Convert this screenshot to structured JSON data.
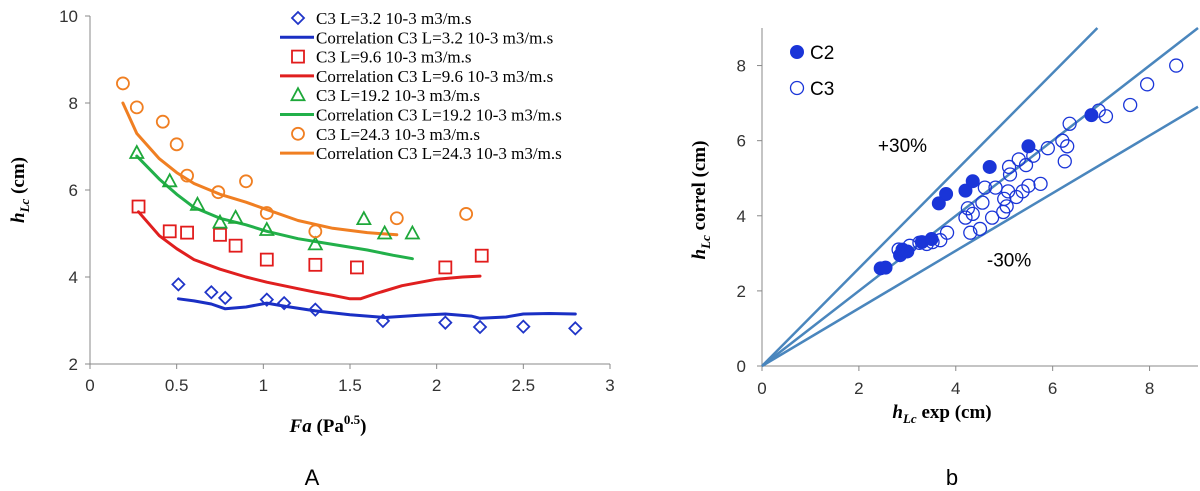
{
  "chart_data": [
    {
      "type": "scatter",
      "panel_label": "A",
      "xlabel": {
        "italic": "Fa",
        "normal": " (Pa",
        "sup": "0.5",
        "close": ")"
      },
      "ylabel": {
        "main": "h",
        "sub": "Lc",
        "rest": " (cm)"
      },
      "xlim": [
        0,
        3
      ],
      "ylim": [
        2,
        10
      ],
      "xticks": [
        "0",
        "0.5",
        "1",
        "1.5",
        "2",
        "2.5",
        "3"
      ],
      "yticks": [
        "2",
        "4",
        "6",
        "8",
        "10"
      ],
      "grid": false,
      "legend_position": "top-right",
      "series": [
        {
          "name": "C3 L=3.2 10-3 m3/m.s",
          "kind": "marker",
          "marker": "diamond",
          "color": "#2035c8",
          "x": [
            0.51,
            0.7,
            0.78,
            1.02,
            1.12,
            1.3,
            1.69,
            2.05,
            2.25,
            2.5,
            2.8
          ],
          "y": [
            3.83,
            3.65,
            3.52,
            3.48,
            3.4,
            3.25,
            2.99,
            2.95,
            2.85,
            2.86,
            2.82
          ]
        },
        {
          "name": "Correlation C3 L=3.2 10-3 m3/m.s",
          "kind": "line",
          "color": "#1a2fc4",
          "x": [
            0.51,
            0.6,
            0.7,
            0.78,
            0.9,
            1.02,
            1.12,
            1.3,
            1.5,
            1.7,
            1.9,
            2.05,
            2.2,
            2.25,
            2.4,
            2.5,
            2.65,
            2.8
          ],
          "y": [
            3.5,
            3.45,
            3.38,
            3.27,
            3.31,
            3.4,
            3.33,
            3.22,
            3.13,
            3.07,
            3.12,
            3.15,
            3.1,
            3.05,
            3.08,
            3.15,
            3.16,
            3.15
          ]
        },
        {
          "name": "C3 L=9.6 10-3 m3/m.s",
          "kind": "marker",
          "marker": "square",
          "color": "#e21c1c",
          "x": [
            0.28,
            0.46,
            0.56,
            0.75,
            0.84,
            1.02,
            1.3,
            1.54,
            2.05,
            2.26
          ],
          "y": [
            5.62,
            5.05,
            5.02,
            4.97,
            4.72,
            4.4,
            4.28,
            4.22,
            4.22,
            4.49
          ]
        },
        {
          "name": "Correlation C3 L=9.6 10-3 m3/m.s",
          "kind": "line",
          "color": "#e01f1f",
          "x": [
            0.28,
            0.4,
            0.5,
            0.6,
            0.75,
            0.9,
            1.02,
            1.2,
            1.3,
            1.4,
            1.5,
            1.56,
            1.65,
            1.8,
            2.0,
            2.15,
            2.25
          ],
          "y": [
            5.5,
            4.95,
            4.65,
            4.4,
            4.18,
            4.0,
            3.88,
            3.73,
            3.65,
            3.58,
            3.5,
            3.5,
            3.62,
            3.8,
            3.95,
            4.0,
            4.02
          ]
        },
        {
          "name": "C3 L=19.2 10-3 m3/m.s",
          "kind": "marker",
          "marker": "triangle",
          "color": "#1ea83a",
          "x": [
            0.27,
            0.46,
            0.62,
            0.75,
            0.84,
            1.02,
            1.3,
            1.58,
            1.7,
            1.86
          ],
          "y": [
            6.85,
            6.2,
            5.66,
            5.25,
            5.36,
            5.08,
            4.75,
            5.33,
            5.0,
            5.0
          ]
        },
        {
          "name": "Correlation C3 L=19.2 10-3 m3/m.s",
          "kind": "line",
          "color": "#22b04a",
          "x": [
            0.27,
            0.4,
            0.5,
            0.6,
            0.75,
            0.9,
            1.02,
            1.2,
            1.4,
            1.6,
            1.75,
            1.86
          ],
          "y": [
            6.78,
            6.25,
            5.9,
            5.6,
            5.35,
            5.2,
            5.05,
            4.88,
            4.75,
            4.62,
            4.5,
            4.42
          ]
        },
        {
          "name": "C3 L=24.3 10-3 m3/m.s",
          "kind": "marker",
          "marker": "circle",
          "color": "#f07f22",
          "x": [
            0.19,
            0.27,
            0.42,
            0.5,
            0.56,
            0.74,
            0.9,
            1.02,
            1.3,
            1.77,
            2.17
          ],
          "y": [
            8.45,
            7.9,
            7.57,
            7.05,
            6.33,
            5.95,
            6.2,
            5.47,
            5.05,
            5.35,
            5.45
          ]
        },
        {
          "name": "Correlation C3 L=24.3 10-3 m3/m.s",
          "kind": "line",
          "color": "#f07f22",
          "x": [
            0.19,
            0.27,
            0.4,
            0.5,
            0.6,
            0.75,
            0.9,
            1.02,
            1.2,
            1.4,
            1.6,
            1.77
          ],
          "y": [
            8.0,
            7.3,
            6.72,
            6.4,
            6.15,
            5.9,
            5.72,
            5.55,
            5.3,
            5.12,
            5.02,
            4.97
          ]
        }
      ]
    },
    {
      "type": "scatter",
      "panel_label": "b",
      "xlabel": {
        "main": "h",
        "sub": "Lc",
        "rest": " exp (cm)"
      },
      "ylabel": {
        "main": "h",
        "sub": "Lc",
        "rest": " correl (cm)"
      },
      "xlim": [
        0,
        9
      ],
      "ylim": [
        0,
        9
      ],
      "xticks": [
        "0",
        "2",
        "4",
        "6",
        "8"
      ],
      "yticks": [
        "0",
        "2",
        "4",
        "6",
        "8"
      ],
      "grid": false,
      "legend_position": "top-left",
      "annotations": [
        {
          "text": "+30%",
          "x": 2.9,
          "y": 5.7
        },
        {
          "text": "-30%",
          "x": 5.1,
          "y": 2.65
        }
      ],
      "reference_lines": [
        {
          "slope": 1.3,
          "color": "#4a86bd"
        },
        {
          "slope": 1.0,
          "color": "#4a86bd"
        },
        {
          "slope": 0.767,
          "color": "#4a86bd"
        }
      ],
      "series": [
        {
          "name": "C2",
          "marker": "filled-circle",
          "color": "#1a35d8",
          "x": [
            2.45,
            2.55,
            2.85,
            2.9,
            3.0,
            3.3,
            3.5,
            3.65,
            3.8,
            4.2,
            4.35,
            4.7,
            5.5,
            6.8
          ],
          "y": [
            2.6,
            2.62,
            2.95,
            3.1,
            3.05,
            3.3,
            3.38,
            4.33,
            4.58,
            4.67,
            4.92,
            5.3,
            5.85,
            6.68
          ]
        },
        {
          "name": "C3",
          "marker": "open-circle",
          "color": "#1a35d8",
          "x": [
            2.82,
            2.9,
            3.05,
            3.25,
            3.4,
            3.52,
            3.68,
            3.82,
            4.2,
            4.25,
            4.3,
            4.35,
            4.5,
            4.55,
            4.6,
            4.75,
            4.82,
            4.98,
            5.0,
            5.05,
            5.08,
            5.1,
            5.12,
            5.25,
            5.3,
            5.38,
            5.45,
            5.5,
            5.6,
            5.75,
            5.9,
            6.2,
            6.25,
            6.3,
            6.35,
            6.95,
            7.1,
            7.6,
            7.95,
            8.55
          ],
          "y": [
            3.1,
            3.05,
            3.2,
            3.28,
            3.25,
            3.3,
            3.35,
            3.55,
            3.95,
            4.2,
            3.55,
            4.05,
            3.65,
            4.35,
            4.75,
            3.95,
            4.75,
            4.1,
            4.45,
            4.25,
            4.65,
            5.3,
            5.1,
            4.5,
            5.5,
            4.65,
            5.35,
            4.8,
            5.6,
            4.85,
            5.8,
            6.0,
            5.45,
            5.85,
            6.45,
            6.8,
            6.65,
            6.95,
            7.5,
            8.0
          ]
        }
      ]
    }
  ]
}
